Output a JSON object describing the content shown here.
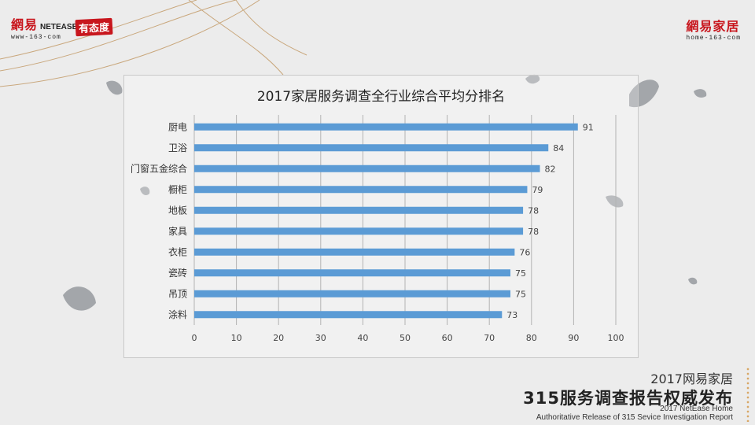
{
  "brand_left": {
    "cn": "網易",
    "en": "NETEASE",
    "url": "www-163-com",
    "stamp": "有态度"
  },
  "brand_right": {
    "cn": "網易家居",
    "url": "home-163-com"
  },
  "footer": {
    "line1": "2017网易家居",
    "line2": "315服务调查报告权威发布",
    "line3a": "2017 NetEase Home",
    "line3b": "Authoritative Release of 315 Sevice Investigation Report"
  },
  "colors": {
    "bar": "#5b9bd5",
    "grid": "#b3b3b3",
    "accent": "#c8161d"
  },
  "chart_data": {
    "type": "bar",
    "orientation": "horizontal",
    "title": "2017家居服务调查全行业综合平均分排名",
    "xlabel": "",
    "ylabel": "",
    "categories": [
      "厨电",
      "卫浴",
      "门窗五金综合",
      "橱柜",
      "地板",
      "家具",
      "衣柜",
      "瓷砖",
      "吊顶",
      "涂料"
    ],
    "values": [
      91,
      84,
      82,
      79,
      78,
      78,
      76,
      75,
      75,
      73
    ],
    "xlim": [
      0,
      100
    ],
    "xticks": [
      0,
      10,
      20,
      30,
      40,
      50,
      60,
      70,
      80,
      90,
      100
    ],
    "grid": true,
    "legend": "none"
  }
}
